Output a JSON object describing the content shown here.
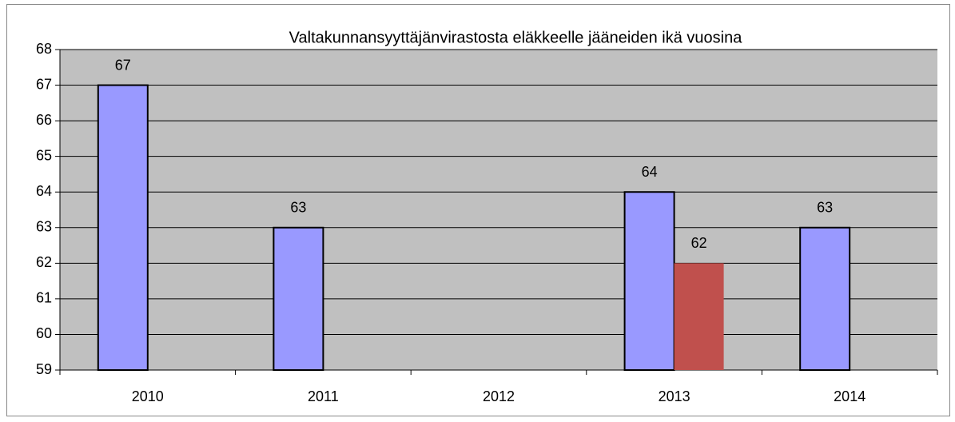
{
  "chart_data": {
    "type": "bar",
    "title": "Valtakunnansyyttäjänvirastosta eläkkeelle jääneiden ikä vuosina",
    "categories": [
      "2010",
      "2011",
      "2012",
      "2013",
      "2014"
    ],
    "series": [
      {
        "color": "#9999ff",
        "values": [
          67,
          63,
          null,
          64,
          63
        ]
      },
      {
        "color": "#c0504d",
        "values": [
          null,
          null,
          null,
          62,
          null
        ]
      }
    ],
    "ylim": [
      59,
      68
    ],
    "yticks": [
      59,
      60,
      61,
      62,
      63,
      64,
      65,
      66,
      67,
      68
    ],
    "grid": true
  }
}
